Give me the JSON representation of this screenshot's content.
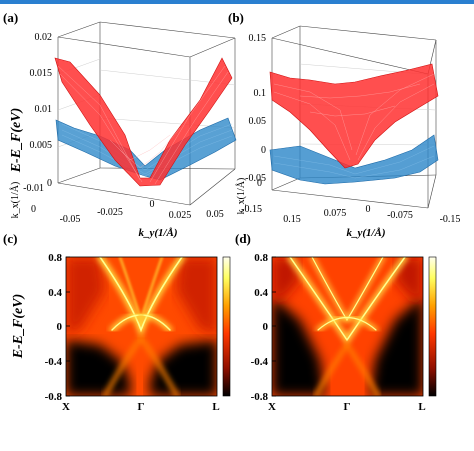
{
  "colors": {
    "red_surface": "#ff2a2a",
    "blue_surface": "#2a86c8",
    "spectral_high": "#ffff80",
    "spectral_mid": "#ff5000",
    "spectral_low": "#000000",
    "top_bar": "#2a7fd0"
  },
  "chart_data": [
    {
      "panel": "(a)",
      "type": "surface",
      "zlabel": "E-E_F(eV)",
      "z_ticks": [
        "0.02",
        "0.015",
        "0.01",
        "0.005",
        "0"
      ],
      "zlim": [
        0,
        0.02
      ],
      "xlabel": "k_y(1/Å)",
      "x_ticks": [
        "-0.05",
        "-0.025",
        "0",
        "0.025",
        "0.05"
      ],
      "ylabel": "k_x(1/Å)",
      "y_ticks": [
        "-0.01",
        "0"
      ],
      "series": [
        {
          "color": "red",
          "shape": "upper cone",
          "x": [
            -0.05,
            -0.025,
            0,
            0.025,
            0.05
          ],
          "values": [
            0.017,
            0.009,
            0.001,
            0.009,
            0.017
          ]
        },
        {
          "color": "blue",
          "shape": "lower cone",
          "x": [
            -0.05,
            -0.025,
            0,
            0.025,
            0.05
          ],
          "values": [
            0.007,
            0.004,
            0.001,
            0.004,
            0.007
          ]
        }
      ]
    },
    {
      "panel": "(b)",
      "type": "surface",
      "zlabel": "",
      "z_ticks": [
        "0.15",
        "0.1",
        "0.05",
        "0",
        "-0.05"
      ],
      "zlim": [
        -0.05,
        0.15
      ],
      "xlabel": "k_y(1/Å)",
      "x_ticks": [
        "0.15",
        "0.075",
        "0",
        "-0.075",
        "-0.15"
      ],
      "ylabel": "k_x(1/Å)",
      "y_ticks": [
        "-0.15",
        "0"
      ],
      "series": [
        {
          "color": "red",
          "shape": "upper band",
          "x": [
            0.15,
            0.075,
            0,
            -0.075,
            -0.15
          ],
          "values": [
            0.12,
            0.09,
            -0.02,
            0.08,
            0.11
          ]
        },
        {
          "color": "blue",
          "shape": "lower band",
          "x": [
            0.15,
            0.075,
            0,
            -0.075,
            -0.15
          ],
          "values": [
            0.01,
            -0.02,
            -0.03,
            -0.01,
            0.0
          ]
        }
      ]
    },
    {
      "panel": "(c)",
      "type": "heatmap",
      "ylabel": "E-E_F(eV)",
      "y_ticks": [
        "0.8",
        "0.4",
        "0",
        "-0.4",
        "-0.8"
      ],
      "ylim": [
        -0.8,
        0.8
      ],
      "x_ticks": [
        "X",
        "Γ",
        "L"
      ],
      "bright_bands": [
        {
          "x": [
            0.25,
            0.35,
            0.45,
            0.5,
            0.55,
            0.65,
            0.75
          ],
          "values": [
            0.8,
            0.45,
            0.25,
            0.15,
            0.25,
            0.45,
            0.8
          ]
        },
        {
          "x": [
            0.3,
            0.4,
            0.5,
            0.6,
            0.7
          ],
          "values": [
            0.05,
            0.15,
            0.2,
            0.15,
            0.05
          ]
        }
      ]
    },
    {
      "panel": "(d)",
      "type": "heatmap",
      "ylabel": "",
      "y_ticks": [
        "0.8",
        "0.4",
        "0",
        "-0.4",
        "-0.8"
      ],
      "ylim": [
        -0.8,
        0.8
      ],
      "x_ticks": [
        "X",
        "Γ",
        "L"
      ],
      "bright_bands": [
        {
          "x": [
            0.2,
            0.3,
            0.4,
            0.5,
            0.6,
            0.7,
            0.8
          ],
          "values": [
            0.8,
            0.6,
            0.35,
            0.2,
            0.35,
            0.6,
            0.8
          ]
        },
        {
          "x": [
            0.3,
            0.4,
            0.5,
            0.6,
            0.7
          ],
          "values": [
            0.05,
            0.15,
            0.1,
            0.15,
            0.05
          ]
        }
      ]
    }
  ]
}
